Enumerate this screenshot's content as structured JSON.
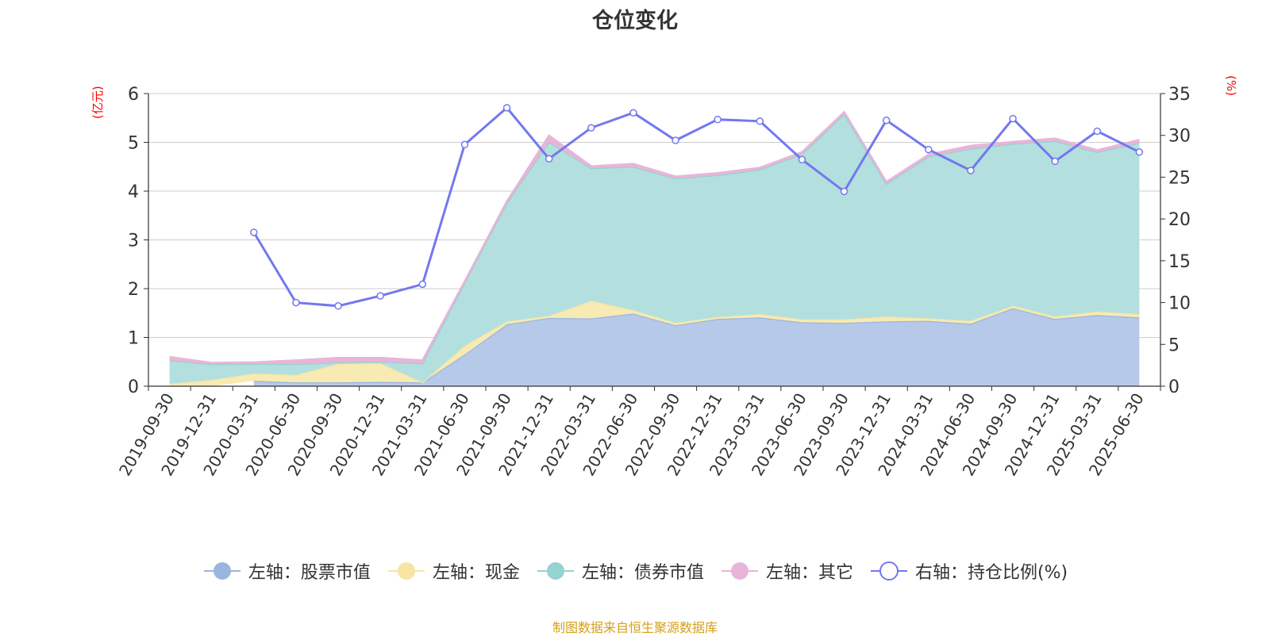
{
  "chart_data": {
    "type": "area",
    "title": "仓位变化",
    "ylabel_left": "(亿元)",
    "ylabel_right": "(%)",
    "ylim_left": [
      0,
      6
    ],
    "ylim_right": [
      0,
      35
    ],
    "yticks_left": [
      "0",
      "1",
      "2",
      "3",
      "4",
      "5",
      "6"
    ],
    "yticks_right": [
      "0",
      "5",
      "10",
      "15",
      "20",
      "25",
      "30",
      "35"
    ],
    "grid": true,
    "legend_position": "bottom",
    "categories": [
      "2019-09-30",
      "2019-12-31",
      "2020-03-31",
      "2020-06-30",
      "2020-09-30",
      "2020-12-31",
      "2021-03-31",
      "2021-06-30",
      "2021-09-30",
      "2021-12-31",
      "2022-03-31",
      "2022-06-30",
      "2022-09-30",
      "2022-12-31",
      "2023-03-31",
      "2023-06-30",
      "2023-09-30",
      "2023-12-31",
      "2024-03-31",
      "2024-06-30",
      "2024-09-30",
      "2024-12-31",
      "2025-03-31",
      "2025-06-30"
    ],
    "series": [
      {
        "name": "左轴：股票市值",
        "axis": "left",
        "color": "#9ab6e0",
        "fill": "#b6c9e8",
        "values": [
          null,
          null,
          0.11,
          0.08,
          0.08,
          0.09,
          0.08,
          0.65,
          1.27,
          1.4,
          1.39,
          1.49,
          1.25,
          1.38,
          1.41,
          1.31,
          1.3,
          1.33,
          1.34,
          1.28,
          1.6,
          1.38,
          1.46,
          1.41
        ]
      },
      {
        "name": "左轴：现金",
        "axis": "left",
        "color": "#f6e5a3",
        "fill": "#f8eab3",
        "values": [
          0.05,
          0.13,
          0.15,
          0.15,
          0.38,
          0.38,
          0.0,
          0.18,
          0.06,
          0.04,
          0.36,
          0.07,
          0.05,
          0.04,
          0.07,
          0.06,
          0.07,
          0.1,
          0.05,
          0.06,
          0.05,
          0.05,
          0.07,
          0.07
        ]
      },
      {
        "name": "左轴：债券市值",
        "axis": "left",
        "color": "#96d2cf",
        "fill": "#b3e0de",
        "values": [
          0.48,
          0.32,
          0.2,
          0.22,
          0.03,
          0.03,
          0.39,
          1.29,
          2.43,
          3.57,
          2.72,
          2.94,
          2.96,
          2.91,
          2.96,
          3.39,
          4.21,
          2.72,
          3.32,
          3.53,
          3.32,
          3.6,
          3.27,
          3.51
        ]
      },
      {
        "name": "左轴：其它",
        "axis": "left",
        "color": "#e8b5d9",
        "fill": "#e8b5d9",
        "values": [
          0.07,
          0.03,
          0.03,
          0.08,
          0.09,
          0.08,
          0.06,
          0.03,
          0.03,
          0.13,
          0.04,
          0.06,
          0.04,
          0.04,
          0.04,
          0.04,
          0.04,
          0.04,
          0.04,
          0.06,
          0.04,
          0.05,
          0.04,
          0.06
        ]
      },
      {
        "name": "右轴：持仓比例(%)",
        "axis": "right",
        "color": "#7378f0",
        "values": [
          null,
          null,
          18.4,
          10.0,
          9.6,
          10.8,
          12.2,
          28.9,
          33.3,
          27.2,
          30.9,
          32.7,
          29.4,
          31.9,
          31.7,
          27.1,
          23.3,
          31.8,
          28.3,
          25.8,
          32.0,
          26.9,
          30.5,
          28.0
        ]
      }
    ]
  },
  "legend": [
    {
      "label": "左轴：股票市值",
      "color": "#9ab6e0",
      "marker": "filled"
    },
    {
      "label": "左轴：现金",
      "color": "#f6e5a3",
      "marker": "filled"
    },
    {
      "label": "左轴：债券市值",
      "color": "#96d2cf",
      "marker": "filled"
    },
    {
      "label": "左轴：其它",
      "color": "#e8b5d9",
      "marker": "filled"
    },
    {
      "label": "右轴：持仓比例(%)",
      "color": "#7378f0",
      "marker": "hollow"
    }
  ],
  "source_note": "制图数据来自恒生聚源数据库",
  "colors": {
    "axis_name": "#ff0000",
    "text": "#333333",
    "grid": "#cccccc",
    "source": "#d4a017"
  }
}
